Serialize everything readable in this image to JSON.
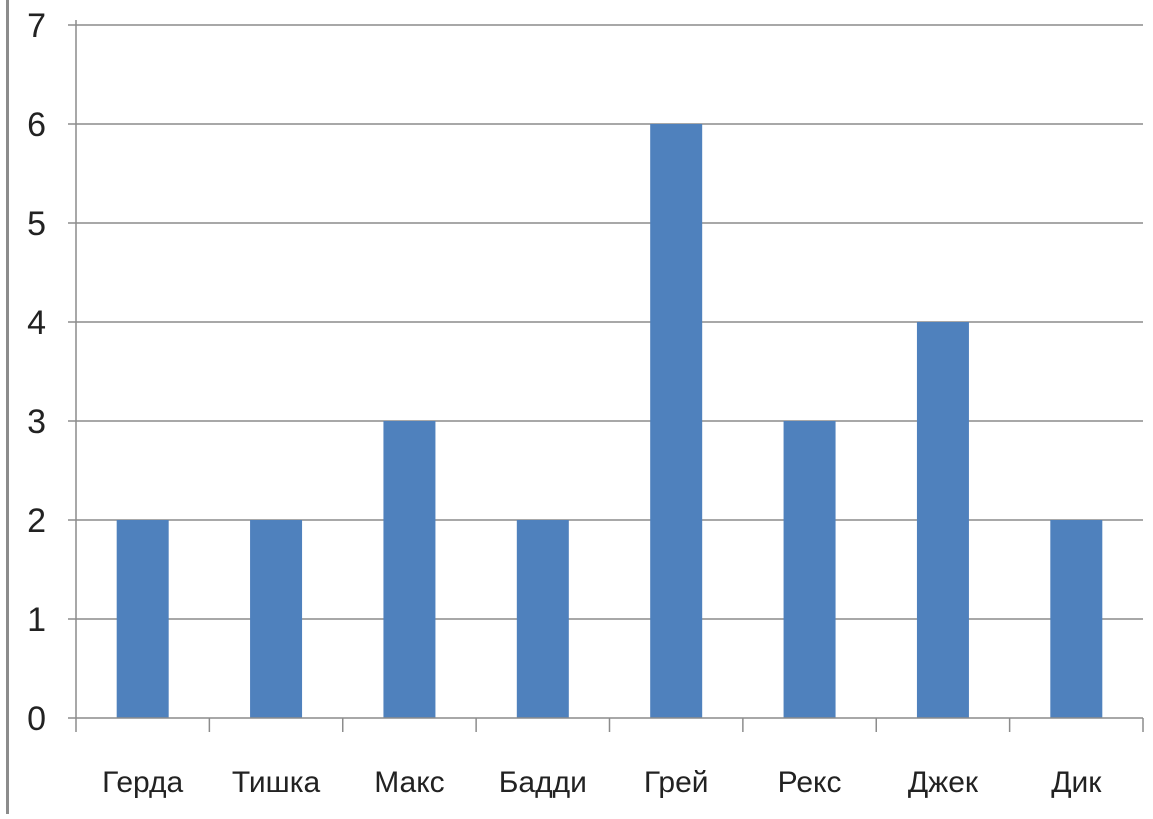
{
  "chart_data": {
    "type": "bar",
    "categories": [
      "Герда",
      "Тишка",
      "Макс",
      "Бадди",
      "Грей",
      "Рекс",
      "Джек",
      "Дик"
    ],
    "values": [
      2,
      2,
      3,
      2,
      6,
      3,
      4,
      2
    ],
    "title": "",
    "xlabel": "",
    "ylabel": "",
    "ylim": [
      0,
      7
    ],
    "yticks": [
      0,
      1,
      2,
      3,
      4,
      5,
      6,
      7
    ],
    "grid": true,
    "legend": "none",
    "bar_color": "#4f81bd",
    "grid_color": "#8c8c8c"
  }
}
